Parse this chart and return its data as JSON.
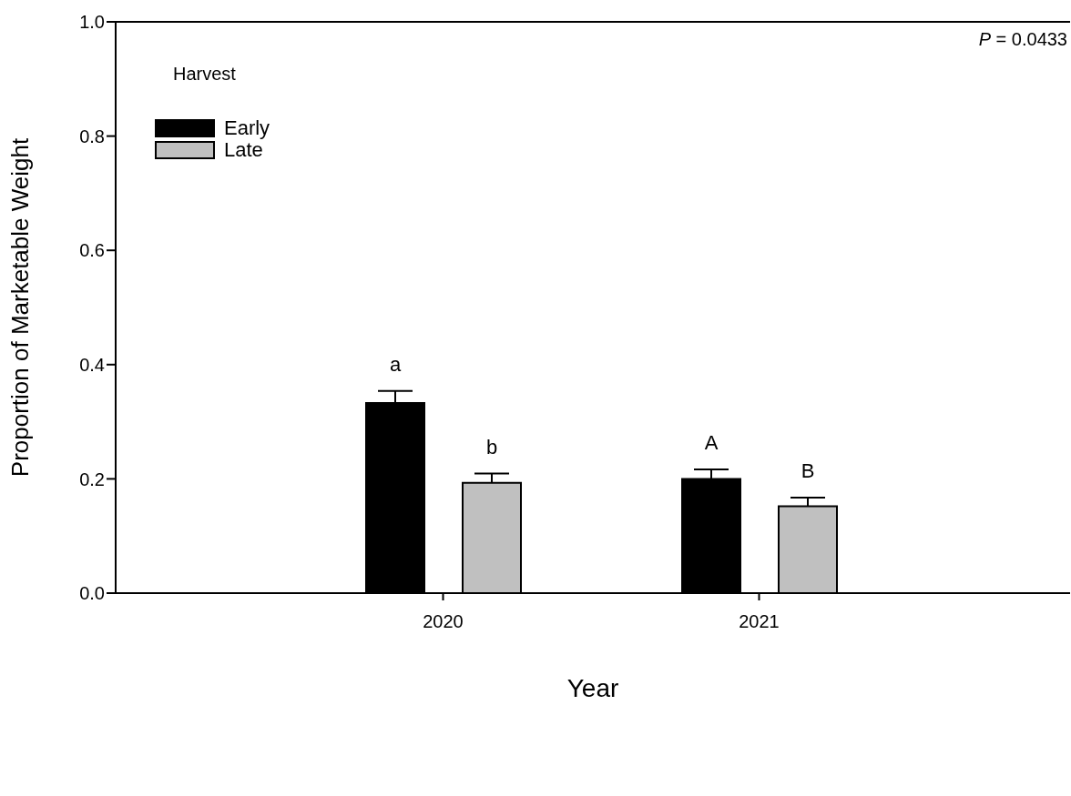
{
  "chart_data": {
    "type": "bar",
    "xlabel": "Year",
    "ylabel": "Proportion of Marketable Weight",
    "legend_title": "Harvest",
    "legend": "top left",
    "categories": [
      "2020",
      "2021"
    ],
    "series": [
      {
        "name": "Early",
        "color": "#000000",
        "values": [
          0.333,
          0.2
        ],
        "errors": [
          [
            0.333,
            0.351
          ],
          [
            0.2,
            0.214
          ]
        ],
        "value_labels": [
          "a",
          "A"
        ]
      },
      {
        "name": "Late",
        "color": "#c0c0c0",
        "values": [
          0.193,
          0.152
        ],
        "errors": [
          [
            0.193,
            0.207
          ],
          [
            0.152,
            0.165
          ]
        ],
        "value_labels": [
          "b",
          "B"
        ]
      }
    ],
    "ylim": [
      0,
      1
    ],
    "yticks": [
      {
        "value": 0,
        "label": "0.0"
      },
      {
        "value": 0.2,
        "label": "0.2"
      },
      {
        "value": 0.4,
        "label": "0.4"
      },
      {
        "value": 0.6,
        "label": "0.6"
      },
      {
        "value": 0.8,
        "label": "0.8"
      },
      {
        "value": 1,
        "label": "1.0"
      }
    ],
    "annotations": [
      "P = 0.0433"
    ]
  }
}
